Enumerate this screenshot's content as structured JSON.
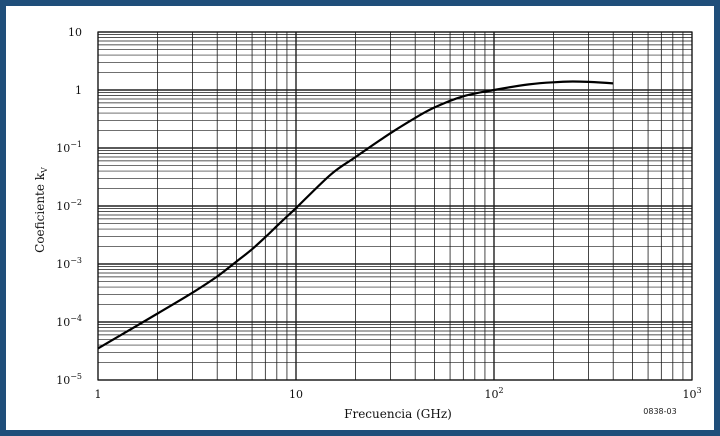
{
  "chart_data": {
    "type": "line",
    "title": "",
    "xlabel": "Frecuencia (GHz)",
    "ylabel": "Coeficiente k",
    "ylabel_subscript": "V",
    "x_scale": "log",
    "y_scale": "log",
    "xlim": [
      1,
      1000
    ],
    "ylim": [
      1e-05,
      10
    ],
    "grid": true,
    "x_tick_labels": [
      {
        "base": "1",
        "exp": ""
      },
      {
        "base": "10",
        "exp": ""
      },
      {
        "base": "10",
        "exp": "2"
      },
      {
        "base": "10",
        "exp": "3"
      }
    ],
    "y_tick_labels": [
      {
        "base": "10",
        "exp": ""
      },
      {
        "base": "1",
        "exp": ""
      },
      {
        "base": "10",
        "exp": "−1"
      },
      {
        "base": "10",
        "exp": "−2"
      },
      {
        "base": "10",
        "exp": "−3"
      },
      {
        "base": "10",
        "exp": "−4"
      },
      {
        "base": "10",
        "exp": "−5"
      }
    ],
    "series": [
      {
        "x": [
          1,
          2,
          3,
          4,
          5,
          6,
          7,
          8,
          9,
          10,
          15,
          20,
          30,
          40,
          50,
          70,
          100,
          150,
          200,
          250,
          300,
          400
        ],
        "y": [
          3.5e-05,
          0.00014,
          0.00032,
          0.00061,
          0.0011,
          0.0018,
          0.0029,
          0.0045,
          0.0066,
          0.0092,
          0.035,
          0.07,
          0.18,
          0.33,
          0.5,
          0.78,
          1.0,
          1.25,
          1.36,
          1.4,
          1.38,
          1.3
        ]
      }
    ],
    "figure_code": "0838-03"
  }
}
